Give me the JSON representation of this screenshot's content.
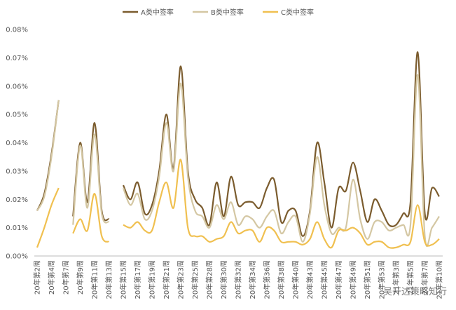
{
  "chart_data": {
    "type": "line",
    "categories": [
      "20年第2周",
      null,
      "20年第4周",
      null,
      "20年第7周",
      null,
      "20年第9周",
      null,
      "20年第11周",
      null,
      "20年第13周",
      null,
      "20年第15周",
      null,
      "20年第17周",
      null,
      "20年第19周",
      null,
      "20年第21周",
      null,
      "20年第23周",
      null,
      "20年第25周",
      null,
      "20年第28周",
      null,
      "20年第30周",
      null,
      "20年第32周",
      null,
      "20年第34周",
      null,
      "20年第36周",
      null,
      "20年第38周",
      null,
      "20年第40周",
      null,
      "20年第43周",
      null,
      "20年第45周",
      null,
      "20年第47周",
      null,
      "20年第49周",
      null,
      "20年第51周",
      null,
      "20年第53周",
      null,
      "21年第3周",
      null,
      "21年第5周",
      null,
      "21年第7周",
      null,
      "21年第10周"
    ],
    "series": [
      {
        "name": "A类中签率",
        "color": "#7b5c2e",
        "values": [
          0.016,
          0.022,
          0.036,
          0.055,
          null,
          0.014,
          0.04,
          0.019,
          0.047,
          0.016,
          0.013,
          null,
          0.025,
          0.02,
          0.026,
          0.015,
          0.018,
          0.03,
          0.05,
          0.031,
          0.067,
          0.03,
          0.02,
          0.017,
          0.011,
          0.026,
          0.014,
          0.028,
          0.018,
          0.019,
          0.019,
          0.017,
          0.024,
          0.027,
          0.012,
          0.016,
          0.016,
          0.007,
          0.016,
          0.04,
          0.026,
          0.01,
          0.024,
          0.023,
          0.033,
          0.023,
          0.012,
          0.02,
          0.016,
          0.011,
          0.011,
          0.015,
          0.019,
          0.072,
          0.015,
          0.024,
          0.021
        ]
      },
      {
        "name": "B类中签率",
        "color": "#d4c7a3",
        "values": [
          0.016,
          0.021,
          0.035,
          0.055,
          null,
          0.011,
          0.039,
          0.017,
          0.043,
          0.015,
          0.012,
          null,
          0.024,
          0.018,
          0.022,
          0.013,
          0.016,
          0.028,
          0.047,
          0.03,
          0.061,
          0.028,
          0.016,
          0.014,
          0.01,
          0.018,
          0.013,
          0.019,
          0.011,
          0.014,
          0.013,
          0.01,
          0.014,
          0.016,
          0.008,
          0.012,
          0.014,
          0.005,
          0.015,
          0.035,
          0.018,
          0.008,
          0.01,
          0.01,
          0.027,
          0.013,
          0.006,
          0.012,
          0.012,
          0.009,
          0.01,
          0.011,
          0.011,
          0.064,
          0.007,
          0.01,
          0.014
        ]
      },
      {
        "name": "C类中签率",
        "color": "#f0c050",
        "values": [
          0.003,
          0.01,
          0.018,
          0.024,
          null,
          0.008,
          0.013,
          0.009,
          0.022,
          0.007,
          0.005,
          null,
          0.011,
          0.01,
          0.012,
          0.009,
          0.009,
          0.019,
          0.026,
          0.017,
          0.034,
          0.01,
          0.007,
          0.007,
          0.005,
          0.006,
          0.007,
          0.012,
          0.008,
          0.009,
          0.009,
          0.005,
          0.01,
          0.009,
          0.005,
          0.005,
          0.005,
          0.004,
          0.006,
          0.012,
          0.006,
          0.003,
          0.009,
          0.009,
          0.01,
          0.008,
          0.004,
          0.005,
          0.005,
          0.003,
          0.003,
          0.004,
          0.005,
          0.018,
          0.005,
          0.004,
          0.006
        ]
      }
    ],
    "ylim": [
      0,
      0.08
    ],
    "yticks": [
      {
        "value": 0,
        "label": "0.00%"
      },
      {
        "value": 0.01,
        "label": "0.01%"
      },
      {
        "value": 0.02,
        "label": "0.02%"
      },
      {
        "value": 0.03,
        "label": "0.03%"
      },
      {
        "value": 0.04,
        "label": "0.04%"
      },
      {
        "value": 0.05,
        "label": "0.05%"
      },
      {
        "value": 0.06,
        "label": "0.06%"
      },
      {
        "value": 0.07,
        "label": "0.07%"
      },
      {
        "value": 0.08,
        "label": "0.08%"
      }
    ],
    "legend": "top",
    "watermark": "吴开达策略知行"
  }
}
